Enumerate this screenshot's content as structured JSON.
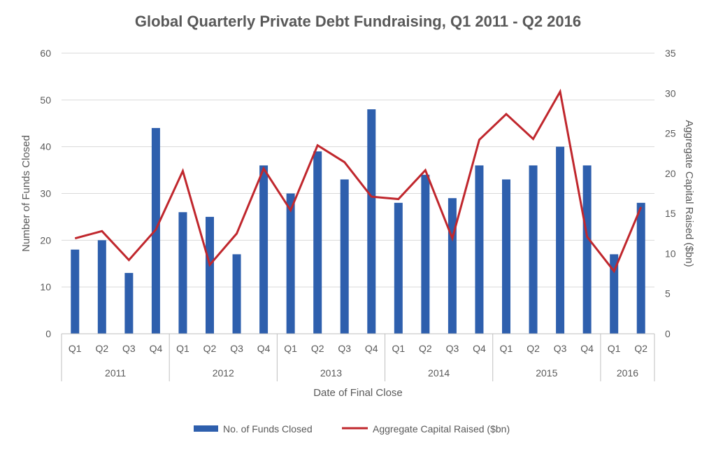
{
  "chart_data": {
    "type": "bar",
    "title": "Global Quarterly Private Debt Fundraising, Q1 2011 - Q2 2016",
    "xlabel": "Date of Final Close",
    "ylabel": "Number of Funds Closed",
    "y2label": "Aggregate Capital Raised ($bn)",
    "ylim": [
      0,
      60
    ],
    "y2lim": [
      0,
      35
    ],
    "yticks": [
      "0",
      "10",
      "20",
      "30",
      "40",
      "50",
      "60"
    ],
    "y2ticks": [
      "0",
      "5",
      "10",
      "15",
      "20",
      "25",
      "30",
      "35"
    ],
    "categories": [
      "Q1",
      "Q2",
      "Q3",
      "Q4",
      "Q1",
      "Q2",
      "Q3",
      "Q4",
      "Q1",
      "Q2",
      "Q3",
      "Q4",
      "Q1",
      "Q2",
      "Q3",
      "Q4",
      "Q1",
      "Q2",
      "Q3",
      "Q4",
      "Q1",
      "Q2"
    ],
    "years": [
      {
        "label": "2011",
        "count": 4
      },
      {
        "label": "2012",
        "count": 4
      },
      {
        "label": "2013",
        "count": 4
      },
      {
        "label": "2014",
        "count": 4
      },
      {
        "label": "2015",
        "count": 4
      },
      {
        "label": "2016",
        "count": 2
      }
    ],
    "series": [
      {
        "name": "No. of Funds Closed",
        "type": "bar",
        "axis": "left",
        "color": "#2e5fad",
        "values": [
          18,
          20,
          13,
          44,
          26,
          25,
          17,
          36,
          30,
          39,
          33,
          48,
          28,
          34,
          29,
          36,
          33,
          36,
          40,
          36,
          17,
          28
        ]
      },
      {
        "name": "Aggregate Capital Raised ($bn)",
        "type": "line",
        "axis": "right",
        "color": "#c0272d",
        "values": [
          11.9,
          12.8,
          9.2,
          13.0,
          20.3,
          8.6,
          12.5,
          20.6,
          15.4,
          23.5,
          21.4,
          17.1,
          16.8,
          20.4,
          11.9,
          24.2,
          27.4,
          24.3,
          30.2,
          12.1,
          7.8,
          15.8
        ]
      }
    ],
    "grid": true,
    "legend_position": "bottom"
  }
}
